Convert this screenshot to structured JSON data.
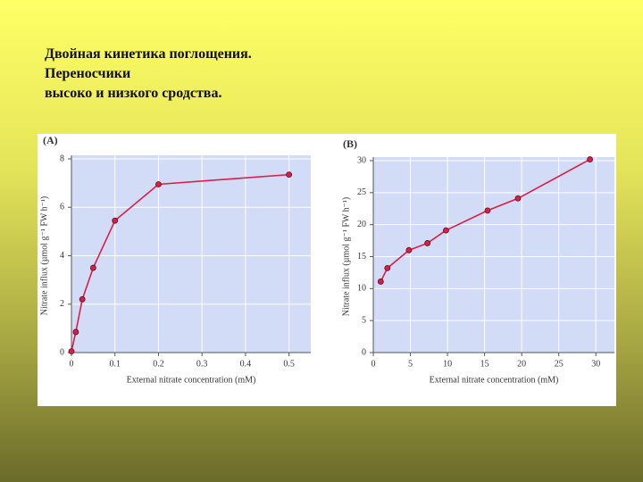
{
  "title_lines": [
    "Двойная кинетика поглощения.",
    "Переносчики",
    "высоко и низкого сродства."
  ],
  "chart_data": [
    {
      "type": "line",
      "title": "(A)",
      "x_label": "External nitrate concentration (mM)",
      "y_label": "Nitrate influx (µmol g⁻¹ FW h⁻¹)",
      "series": [
        {
          "name": "Nitrate influx",
          "color": "#d81e4a",
          "x": [
            0,
            0.01,
            0.025,
            0.05,
            0.1,
            0.2,
            0.5
          ],
          "values": [
            0.05,
            0.85,
            2.2,
            3.5,
            5.45,
            6.95,
            7.35
          ]
        }
      ],
      "xlim": [
        0,
        0.55
      ],
      "ylim": [
        0,
        8
      ],
      "xticks": [
        0,
        0.1,
        0.2,
        0.3,
        0.4,
        0.5
      ],
      "yticks": [
        0,
        2,
        4,
        6,
        8
      ],
      "grid": true
    },
    {
      "type": "line",
      "title": "(B)",
      "x_label": "External nitrate concentration (mM)",
      "y_label": "Nitrate influx (µmol g⁻¹ FW h⁻¹)",
      "series": [
        {
          "name": "Nitrate influx",
          "color": "#d81e4a",
          "x": [
            1,
            1.9,
            4.8,
            7.3,
            9.8,
            15.4,
            19.5,
            29.2
          ],
          "values": [
            11.1,
            13.2,
            16,
            17.1,
            19.1,
            22.2,
            24.1,
            30.2
          ]
        }
      ],
      "xlim": [
        0,
        32.5
      ],
      "ylim": [
        0,
        30
      ],
      "xticks": [
        0,
        5,
        10,
        15,
        20,
        25,
        30
      ],
      "yticks": [
        0,
        5,
        10,
        15,
        20,
        25,
        30
      ],
      "grid": true
    }
  ]
}
